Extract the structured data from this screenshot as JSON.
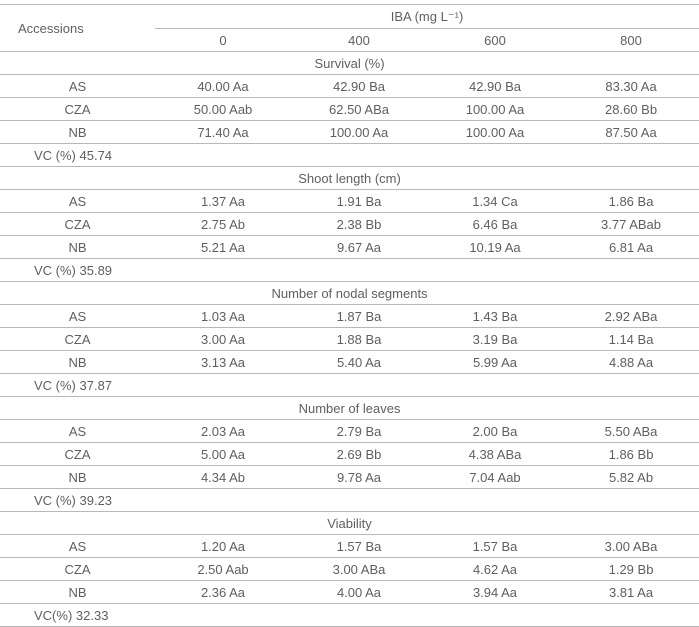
{
  "header": {
    "accessions_label": "Accessions",
    "iba_label": "IBA (mg L⁻¹)",
    "doses": [
      "0",
      "400",
      "600",
      "800"
    ]
  },
  "sections": [
    {
      "title": "Survival (%)",
      "rows": [
        {
          "name": "AS",
          "vals": [
            "40.00 Aa",
            "42.90 Ba",
            "42.90 Ba",
            "83.30 Aa"
          ]
        },
        {
          "name": "CZA",
          "vals": [
            "50.00 Aab",
            "62.50 ABa",
            "100.00 Aa",
            "28.60 Bb"
          ]
        },
        {
          "name": "NB",
          "vals": [
            "71.40 Aa",
            "100.00 Aa",
            "100.00 Aa",
            "87.50 Aa"
          ]
        }
      ],
      "vc": "VC (%) 45.74"
    },
    {
      "title": "Shoot length (cm)",
      "rows": [
        {
          "name": "AS",
          "vals": [
            "1.37 Aa",
            "1.91 Ba",
            "1.34 Ca",
            "1.86 Ba"
          ]
        },
        {
          "name": "CZA",
          "vals": [
            "2.75 Ab",
            "2.38 Bb",
            "6.46 Ba",
            "3.77 ABab"
          ]
        },
        {
          "name": "NB",
          "vals": [
            "5.21 Aa",
            "9.67 Aa",
            "10.19 Aa",
            "6.81 Aa"
          ]
        }
      ],
      "vc": "VC (%) 35.89"
    },
    {
      "title": "Number of nodal segments",
      "rows": [
        {
          "name": "AS",
          "vals": [
            "1.03 Aa",
            "1.87 Ba",
            "1.43 Ba",
            "2.92 ABa"
          ]
        },
        {
          "name": "CZA",
          "vals": [
            "3.00 Aa",
            "1.88 Ba",
            "3.19 Ba",
            "1.14 Ba"
          ]
        },
        {
          "name": "NB",
          "vals": [
            "3.13 Aa",
            "5.40 Aa",
            "5.99 Aa",
            "4.88 Aa"
          ]
        }
      ],
      "vc": "VC (%) 37.87"
    },
    {
      "title": "Number of leaves",
      "rows": [
        {
          "name": "AS",
          "vals": [
            "2.03 Aa",
            "2.79 Ba",
            "2.00 Ba",
            "5.50 ABa"
          ]
        },
        {
          "name": "CZA",
          "vals": [
            "5.00 Aa",
            "2.69 Bb",
            "4.38 ABa",
            "1.86 Bb"
          ]
        },
        {
          "name": "NB",
          "vals": [
            "4.34 Ab",
            "9.78 Aa",
            "7.04 Aab",
            "5.82 Ab"
          ]
        }
      ],
      "vc": "VC (%) 39.23"
    },
    {
      "title": "Viability",
      "rows": [
        {
          "name": "AS",
          "vals": [
            "1.20 Aa",
            "1.57 Ba",
            "1.57 Ba",
            "3.00 ABa"
          ]
        },
        {
          "name": "CZA",
          "vals": [
            "2.50 Aab",
            "3.00 ABa",
            "4.62 Aa",
            "1.29 Bb"
          ]
        },
        {
          "name": "NB",
          "vals": [
            "2.36 Aa",
            "4.00 Aa",
            "3.94 Aa",
            "3.81 Aa"
          ]
        }
      ],
      "vc": "VC(%) 32.33"
    }
  ]
}
